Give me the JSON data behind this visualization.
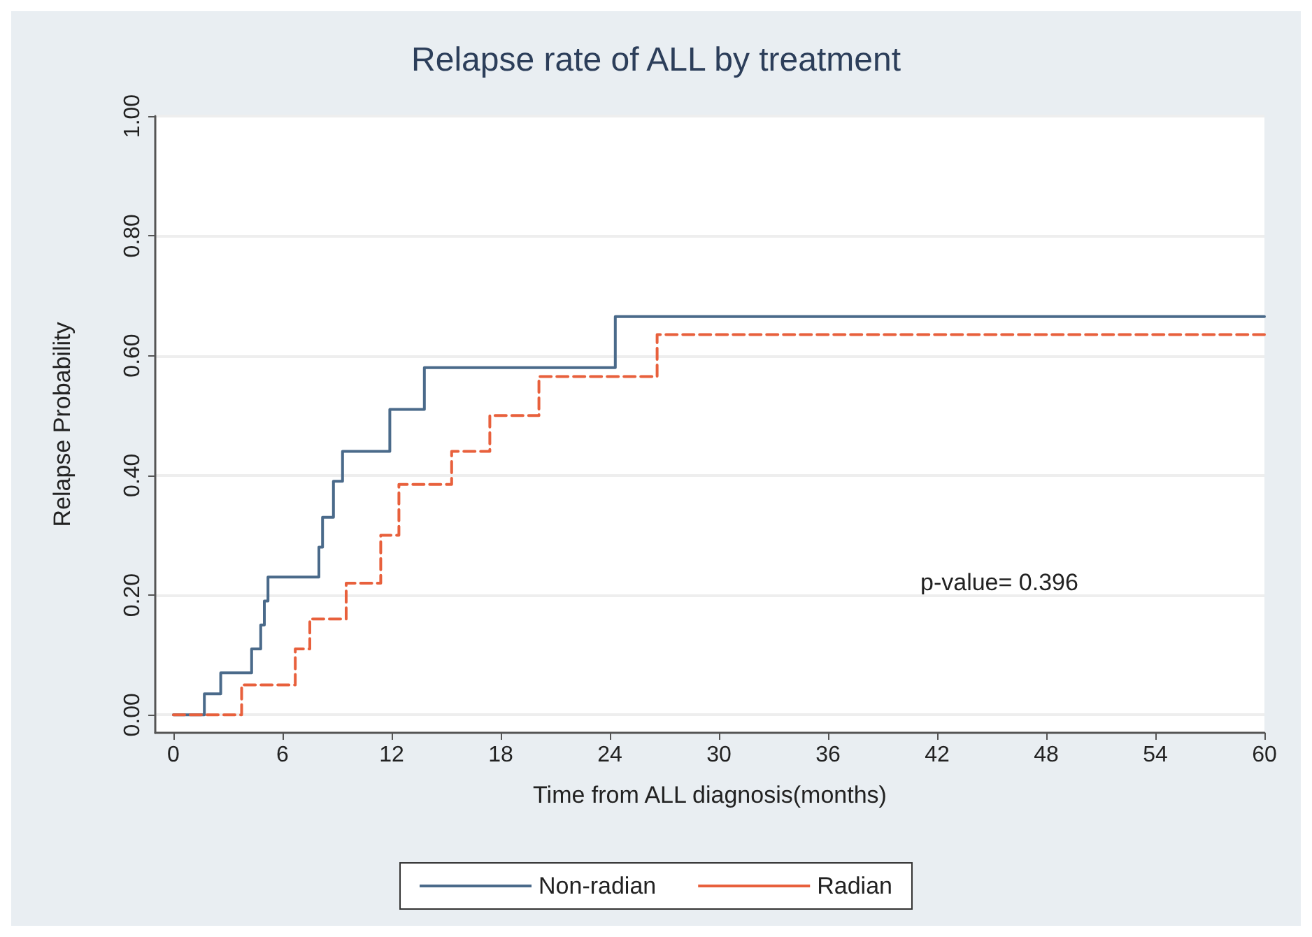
{
  "chart_data": {
    "type": "step",
    "title": "Relapse rate of ALL by treatment",
    "xlabel": "Time from ALL diagnosis(months)",
    "ylabel": "Relapse Probability",
    "xlim": [
      -1,
      60
    ],
    "xticks": [
      0,
      6,
      12,
      18,
      24,
      30,
      36,
      42,
      48,
      54,
      60
    ],
    "ylim": [
      -0.03,
      1
    ],
    "yticks": [
      {
        "value": 0,
        "label": "0.00"
      },
      {
        "value": 0.2,
        "label": "0.20"
      },
      {
        "value": 0.4,
        "label": "0.40"
      },
      {
        "value": 0.6,
        "label": "0.60"
      },
      {
        "value": 0.8,
        "label": "0.80"
      },
      {
        "value": 1,
        "label": "1.00"
      }
    ],
    "grid": "y",
    "legend": "bottom",
    "marker": "none",
    "annotations": [
      "p-value= 0.396"
    ],
    "series": [
      {
        "name": "Non-radian",
        "color": "#4a6a8a",
        "line_style": "solid",
        "x": [
          0,
          1.7,
          2.6,
          4.3,
          4.8,
          5.0,
          5.2,
          8.0,
          8.2,
          8.8,
          9.3,
          11.9,
          13.8,
          24.3,
          60
        ],
        "values": [
          0,
          0.035,
          0.07,
          0.11,
          0.15,
          0.19,
          0.23,
          0.28,
          0.33,
          0.39,
          0.44,
          0.51,
          0.58,
          0.665,
          0.665
        ]
      },
      {
        "name": "Radian",
        "color": "#e8603c",
        "line_style": "dashed",
        "x": [
          0,
          3.75,
          6.7,
          7.5,
          9.5,
          11.4,
          12.4,
          15.3,
          17.4,
          20.1,
          26.6,
          60
        ],
        "values": [
          0,
          0.05,
          0.11,
          0.16,
          0.22,
          0.3,
          0.385,
          0.44,
          0.5,
          0.565,
          0.635,
          0.635
        ]
      }
    ]
  }
}
